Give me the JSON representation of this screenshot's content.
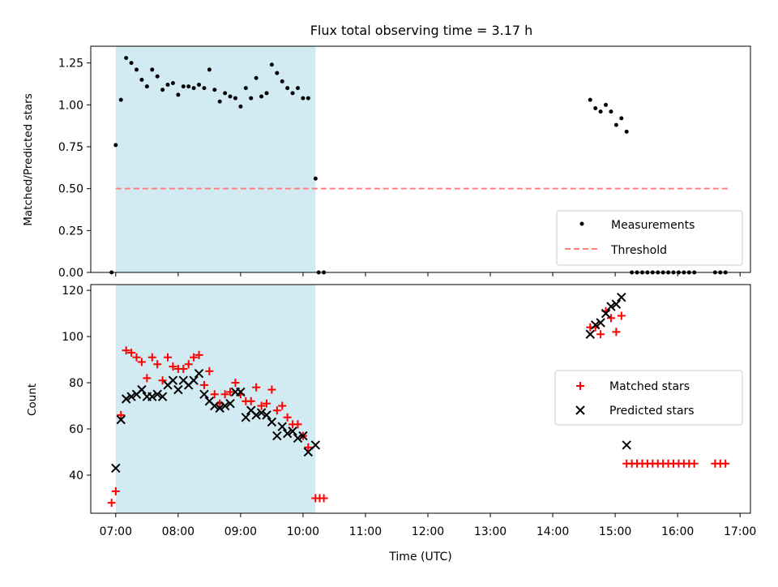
{
  "title": "Flux total observing time = 3.17 h",
  "colors": {
    "measurement": "#000000",
    "threshold": "#ff7f7f",
    "matched": "#ff0000",
    "predicted": "#000000",
    "span": "#add8e6"
  },
  "chart_data": [
    {
      "type": "scatter",
      "ylabel": "Matched/Predicted stars",
      "xlim": [
        "06:36",
        "17:10"
      ],
      "ylim": [
        0,
        1.35
      ],
      "span": {
        "start": "07:00",
        "end": "10:12"
      },
      "x_tick_labels": [
        "07:00",
        "08:00",
        "09:00",
        "10:00",
        "11:00",
        "12:00",
        "13:00",
        "14:00",
        "15:00",
        "16:00",
        "17:00"
      ],
      "y_tick_labels": [
        "0.00",
        "0.25",
        "0.50",
        "0.75",
        "1.00",
        "1.25"
      ],
      "y_ticks": [
        0,
        0.25,
        0.5,
        0.75,
        1.0,
        1.25
      ],
      "legend": {
        "position": "lower right",
        "entries": [
          "Measurements",
          "Threshold"
        ]
      },
      "threshold": {
        "name": "Threshold",
        "y": 0.5,
        "x_range": [
          "07:00",
          "16:48"
        ]
      },
      "series": [
        {
          "name": "Measurements",
          "points": [
            [
              "06:56",
              0.0
            ],
            [
              "07:00",
              0.76
            ],
            [
              "07:05",
              1.03
            ],
            [
              "07:10",
              1.28
            ],
            [
              "07:15",
              1.25
            ],
            [
              "07:20",
              1.21
            ],
            [
              "07:25",
              1.15
            ],
            [
              "07:30",
              1.11
            ],
            [
              "07:35",
              1.21
            ],
            [
              "07:40",
              1.17
            ],
            [
              "07:45",
              1.09
            ],
            [
              "07:50",
              1.12
            ],
            [
              "07:55",
              1.13
            ],
            [
              "08:00",
              1.06
            ],
            [
              "08:05",
              1.11
            ],
            [
              "08:10",
              1.11
            ],
            [
              "08:15",
              1.1
            ],
            [
              "08:20",
              1.12
            ],
            [
              "08:25",
              1.1
            ],
            [
              "08:30",
              1.21
            ],
            [
              "08:35",
              1.09
            ],
            [
              "08:40",
              1.02
            ],
            [
              "08:45",
              1.07
            ],
            [
              "08:50",
              1.05
            ],
            [
              "08:55",
              1.04
            ],
            [
              "09:00",
              0.99
            ],
            [
              "09:05",
              1.1
            ],
            [
              "09:10",
              1.04
            ],
            [
              "09:15",
              1.16
            ],
            [
              "09:20",
              1.05
            ],
            [
              "09:25",
              1.07
            ],
            [
              "09:30",
              1.24
            ],
            [
              "09:35",
              1.19
            ],
            [
              "09:40",
              1.14
            ],
            [
              "09:45",
              1.1
            ],
            [
              "09:50",
              1.07
            ],
            [
              "09:55",
              1.1
            ],
            [
              "10:00",
              1.04
            ],
            [
              "10:05",
              1.04
            ],
            [
              "10:12",
              0.56
            ],
            [
              "10:15",
              0.0
            ],
            [
              "10:20",
              0.0
            ],
            [
              "14:36",
              1.03
            ],
            [
              "14:41",
              0.98
            ],
            [
              "14:46",
              0.96
            ],
            [
              "14:51",
              1.0
            ],
            [
              "14:56",
              0.96
            ],
            [
              "15:01",
              0.88
            ],
            [
              "15:06",
              0.92
            ],
            [
              "15:11",
              0.84
            ],
            [
              "15:16",
              0.0
            ],
            [
              "15:21",
              0.0
            ],
            [
              "15:26",
              0.0
            ],
            [
              "15:31",
              0.0
            ],
            [
              "15:36",
              0.0
            ],
            [
              "15:41",
              0.0
            ],
            [
              "15:46",
              0.0
            ],
            [
              "15:51",
              0.0
            ],
            [
              "15:56",
              0.0
            ],
            [
              "16:01",
              0.0
            ],
            [
              "16:06",
              0.0
            ],
            [
              "16:11",
              0.0
            ],
            [
              "16:16",
              0.0
            ],
            [
              "16:36",
              0.0
            ],
            [
              "16:41",
              0.0
            ],
            [
              "16:46",
              0.0
            ]
          ]
        }
      ]
    },
    {
      "type": "scatter",
      "xlabel": "Time (UTC)",
      "ylabel": "Count",
      "xlim": [
        "06:36",
        "17:10"
      ],
      "ylim": [
        23.5,
        122.5
      ],
      "span": {
        "start": "07:00",
        "end": "10:12"
      },
      "x_tick_labels": [
        "07:00",
        "08:00",
        "09:00",
        "10:00",
        "11:00",
        "12:00",
        "13:00",
        "14:00",
        "15:00",
        "16:00",
        "17:00"
      ],
      "y_tick_labels": [
        "40",
        "60",
        "80",
        "100",
        "120"
      ],
      "y_ticks": [
        40,
        60,
        80,
        100,
        120
      ],
      "legend": {
        "position": "center right",
        "entries": [
          "Matched stars",
          "Predicted stars"
        ]
      },
      "series": [
        {
          "name": "Matched stars",
          "points": [
            [
              "06:56",
              28
            ],
            [
              "07:00",
              33
            ],
            [
              "07:05",
              66
            ],
            [
              "07:10",
              94
            ],
            [
              "07:15",
              93
            ],
            [
              "07:20",
              91
            ],
            [
              "07:25",
              89
            ],
            [
              "07:30",
              82
            ],
            [
              "07:35",
              91
            ],
            [
              "07:40",
              88
            ],
            [
              "07:45",
              81
            ],
            [
              "07:50",
              91
            ],
            [
              "07:55",
              87
            ],
            [
              "08:00",
              86
            ],
            [
              "08:05",
              86
            ],
            [
              "08:10",
              88
            ],
            [
              "08:15",
              91
            ],
            [
              "08:20",
              92
            ],
            [
              "08:25",
              79
            ],
            [
              "08:30",
              85
            ],
            [
              "08:35",
              75
            ],
            [
              "08:40",
              71
            ],
            [
              "08:45",
              75
            ],
            [
              "08:50",
              76
            ],
            [
              "08:55",
              80
            ],
            [
              "09:00",
              75
            ],
            [
              "09:05",
              72
            ],
            [
              "09:10",
              72
            ],
            [
              "09:15",
              78
            ],
            [
              "09:20",
              70
            ],
            [
              "09:25",
              71
            ],
            [
              "09:30",
              77
            ],
            [
              "09:35",
              68
            ],
            [
              "09:40",
              70
            ],
            [
              "09:45",
              65
            ],
            [
              "09:50",
              62
            ],
            [
              "09:55",
              62
            ],
            [
              "10:00",
              57
            ],
            [
              "10:05",
              52
            ],
            [
              "10:12",
              30
            ],
            [
              "10:16",
              30
            ],
            [
              "10:20",
              30
            ],
            [
              "14:36",
              104
            ],
            [
              "14:41",
              104
            ],
            [
              "14:46",
              101
            ],
            [
              "14:51",
              111
            ],
            [
              "14:56",
              108
            ],
            [
              "15:01",
              102
            ],
            [
              "15:06",
              109
            ],
            [
              "15:11",
              45
            ],
            [
              "15:16",
              45
            ],
            [
              "15:21",
              45
            ],
            [
              "15:26",
              45
            ],
            [
              "15:31",
              45
            ],
            [
              "15:36",
              45
            ],
            [
              "15:41",
              45
            ],
            [
              "15:46",
              45
            ],
            [
              "15:51",
              45
            ],
            [
              "15:56",
              45
            ],
            [
              "16:01",
              45
            ],
            [
              "16:06",
              45
            ],
            [
              "16:11",
              45
            ],
            [
              "16:16",
              45
            ],
            [
              "16:36",
              45
            ],
            [
              "16:41",
              45
            ],
            [
              "16:46",
              45
            ]
          ]
        },
        {
          "name": "Predicted stars",
          "points": [
            [
              "07:00",
              43
            ],
            [
              "07:05",
              64
            ],
            [
              "07:10",
              73
            ],
            [
              "07:15",
              74
            ],
            [
              "07:20",
              75
            ],
            [
              "07:25",
              77
            ],
            [
              "07:30",
              74
            ],
            [
              "07:35",
              74
            ],
            [
              "07:40",
              75
            ],
            [
              "07:45",
              74
            ],
            [
              "07:50",
              79
            ],
            [
              "07:55",
              81
            ],
            [
              "08:00",
              77
            ],
            [
              "08:05",
              81
            ],
            [
              "08:10",
              79
            ],
            [
              "08:15",
              81
            ],
            [
              "08:20",
              84
            ],
            [
              "08:25",
              75
            ],
            [
              "08:30",
              72
            ],
            [
              "08:35",
              70
            ],
            [
              "08:40",
              69
            ],
            [
              "08:45",
              70
            ],
            [
              "08:50",
              71
            ],
            [
              "08:55",
              76
            ],
            [
              "09:00",
              76
            ],
            [
              "09:05",
              65
            ],
            [
              "09:10",
              68
            ],
            [
              "09:15",
              66
            ],
            [
              "09:20",
              67
            ],
            [
              "09:25",
              66
            ],
            [
              "09:30",
              63
            ],
            [
              "09:35",
              57
            ],
            [
              "09:40",
              61
            ],
            [
              "09:45",
              58
            ],
            [
              "09:50",
              59
            ],
            [
              "09:55",
              56
            ],
            [
              "10:00",
              57
            ],
            [
              "10:05",
              50
            ],
            [
              "10:12",
              53
            ],
            [
              "14:36",
              101
            ],
            [
              "14:41",
              105
            ],
            [
              "14:46",
              106
            ],
            [
              "14:51",
              110
            ],
            [
              "14:56",
              113
            ],
            [
              "15:01",
              114
            ],
            [
              "15:06",
              117
            ],
            [
              "15:11",
              53
            ]
          ]
        }
      ]
    }
  ]
}
